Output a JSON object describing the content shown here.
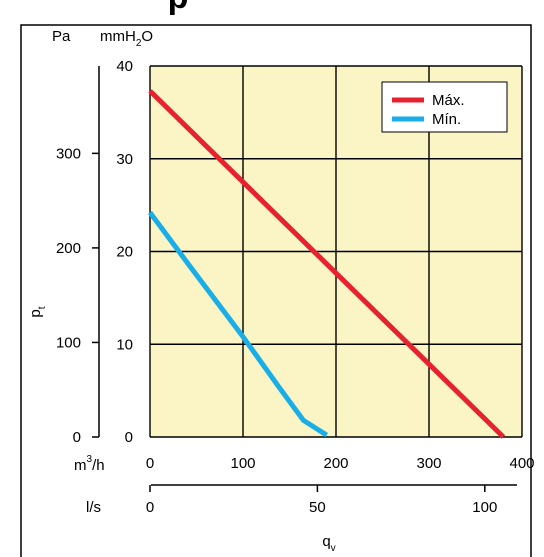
{
  "header_fragment": "p",
  "colors": {
    "plot_background": "#fbf4c4",
    "max_line": "#e6222e",
    "min_line": "#1aaee8",
    "grid": "#000000"
  },
  "chart_data": {
    "type": "line",
    "xlabel": "q",
    "xlabel_sub": "v",
    "ylabel": "p",
    "ylabel_sub": "t",
    "x_axis_m3h": {
      "unit": "m",
      "unit_sup": "3",
      "unit_tail": "/h",
      "ticks": [
        "0",
        "100",
        "200",
        "300",
        "400"
      ],
      "range": [
        0,
        400
      ]
    },
    "x_axis_ls": {
      "unit": "l/s",
      "ticks": [
        "0",
        "50",
        "100"
      ]
    },
    "y_axis_pa": {
      "unit": "Pa",
      "ticks": [
        "0",
        "100",
        "200",
        "300"
      ]
    },
    "y_axis_mmh2o": {
      "unit_main": "mmH",
      "unit_sub": "2",
      "unit_tail": "O",
      "ticks": [
        "0",
        "10",
        "20",
        "30",
        "40"
      ],
      "range": [
        0,
        40
      ]
    },
    "grid": true,
    "legend_position": "top-right",
    "series": [
      {
        "name": "Máx.",
        "color": "#e6222e",
        "points": [
          [
            0,
            37.3
          ],
          [
            380,
            0
          ]
        ]
      },
      {
        "name": "Mín.",
        "color": "#1aaee8",
        "points": [
          [
            0,
            24.2
          ],
          [
            40,
            18.8
          ],
          [
            100,
            10.8
          ],
          [
            140,
            5.2
          ],
          [
            165,
            1.8
          ],
          [
            190,
            0.2
          ]
        ]
      }
    ]
  }
}
